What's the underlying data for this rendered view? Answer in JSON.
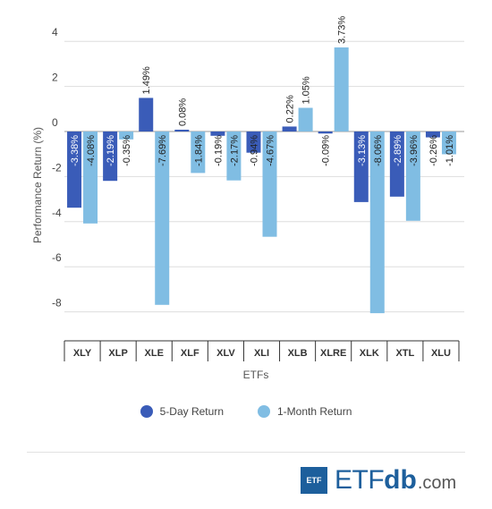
{
  "chart_data": {
    "type": "bar",
    "xlabel": "ETFs",
    "ylabel": "Performance Return (%)",
    "ylim": [
      -9,
      4
    ],
    "yticks": [
      4,
      2,
      0,
      -2,
      -4,
      -6,
      -8
    ],
    "grid": true,
    "legend_position": "bottom",
    "categories": [
      "XLY",
      "XLP",
      "XLE",
      "XLF",
      "XLV",
      "XLI",
      "XLB",
      "XLRE",
      "XLK",
      "XTL",
      "XLU"
    ],
    "series": [
      {
        "name": "5-Day Return",
        "color": "#3a5cb8",
        "values": [
          -3.38,
          -2.19,
          1.49,
          0.08,
          -0.19,
          -0.94,
          0.22,
          -0.09,
          -3.13,
          -2.89,
          -0.26
        ],
        "labels": [
          "-3.38%",
          "-2.19%",
          "1.49%",
          "0.08%",
          "-0.19%",
          "-0.94%",
          "0.22%",
          "-0.09%",
          "-3.13%",
          "-2.89%",
          "-0.26%"
        ]
      },
      {
        "name": "1-Month Return",
        "color": "#80bde3",
        "values": [
          -4.08,
          -0.35,
          -7.69,
          -1.84,
          -2.17,
          -4.67,
          1.05,
          3.73,
          -8.06,
          -3.96,
          -1.01
        ],
        "labels": [
          "-4.08%",
          "-0.35%",
          "-7.69%",
          "-1.84%",
          "-2.17%",
          "-4.67%",
          "1.05%",
          "3.73%",
          "-8.06%",
          "-3.96%",
          "-1.01%"
        ]
      }
    ]
  },
  "legend": {
    "series1_label": "5-Day Return",
    "series2_label": "1-Month Return"
  },
  "logo": {
    "box_text": "ETF",
    "etf_text": "ETF",
    "db_text": "db",
    "com_text": ".com"
  }
}
